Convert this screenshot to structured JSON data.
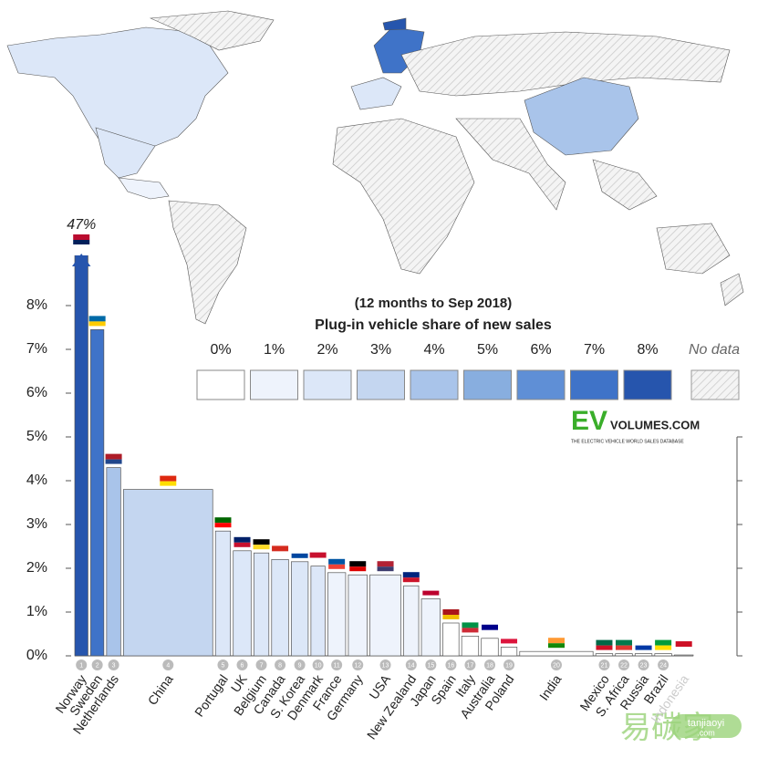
{
  "chart_data": {
    "type": "bar",
    "title": "(12 months to Sep 2018)",
    "subtitle": "Plug-in vehicle share of new sales",
    "categories": [
      "Norway",
      "Sweden",
      "Netherlands",
      "China",
      "Portugal",
      "UK",
      "Belgium",
      "Canada",
      "S. Korea",
      "Denmark",
      "France",
      "Germany",
      "USA",
      "New Zealand",
      "Japan",
      "Spain",
      "Italy",
      "Australia",
      "Poland",
      "India",
      "Mexico",
      "S. Africa",
      "Russia",
      "Brazil",
      "Indonesia"
    ],
    "ranks": [
      1,
      2,
      3,
      4,
      5,
      6,
      7,
      8,
      9,
      10,
      11,
      12,
      13,
      14,
      15,
      16,
      17,
      18,
      19,
      20,
      21,
      22,
      23,
      24,
      null
    ],
    "values": [
      47,
      7.45,
      4.3,
      3.8,
      2.85,
      2.4,
      2.35,
      2.2,
      2.15,
      2.05,
      1.9,
      1.85,
      1.85,
      1.6,
      1.3,
      0.75,
      0.45,
      0.4,
      0.2,
      0.1,
      0.05,
      0.05,
      0.05,
      0.05,
      0.02
    ],
    "value_labels": [
      "47%",
      null,
      null,
      null,
      null,
      null,
      null,
      null,
      null,
      null,
      null,
      null,
      null,
      null,
      null,
      null,
      null,
      null,
      null,
      null,
      null,
      null,
      null,
      null,
      null
    ],
    "sizes": [
      14,
      14,
      15,
      95,
      16,
      19,
      16,
      18,
      18,
      15,
      19,
      20,
      33,
      16,
      20,
      17,
      18,
      18,
      17,
      78,
      18,
      18,
      18,
      18,
      20
    ],
    "ylim": [
      0,
      8
    ],
    "yticks": [
      {
        "value": 0,
        "label": "0%"
      },
      {
        "value": 1,
        "label": "1%"
      },
      {
        "value": 2,
        "label": "2%"
      },
      {
        "value": 3,
        "label": "3%"
      },
      {
        "value": 4,
        "label": "4%"
      },
      {
        "value": 5,
        "label": "5%"
      },
      {
        "value": 6,
        "label": "6%"
      },
      {
        "value": 7,
        "label": "7%"
      },
      {
        "value": 8,
        "label": "8%"
      }
    ],
    "legend": {
      "labels": [
        "0%",
        "1%",
        "2%",
        "3%",
        "4%",
        "5%",
        "6%",
        "7%",
        "8%"
      ],
      "colors": [
        "#ffffff",
        "#eef3fc",
        "#dce7f8",
        "#c4d6f0",
        "#a9c4ea",
        "#88aedf",
        "#5f8fd6",
        "#3f73c8",
        "#2655ad"
      ],
      "no_data": "No data"
    },
    "logo": {
      "ev": "EV",
      "site": "VOLUMES.COM",
      "tagline": "THE ELECTRIC VEHICLE WORLD SALES DATABASE"
    },
    "watermark": {
      "name": "易碳家",
      "domain": "tanjiaoyi",
      "tld": ".com"
    }
  }
}
